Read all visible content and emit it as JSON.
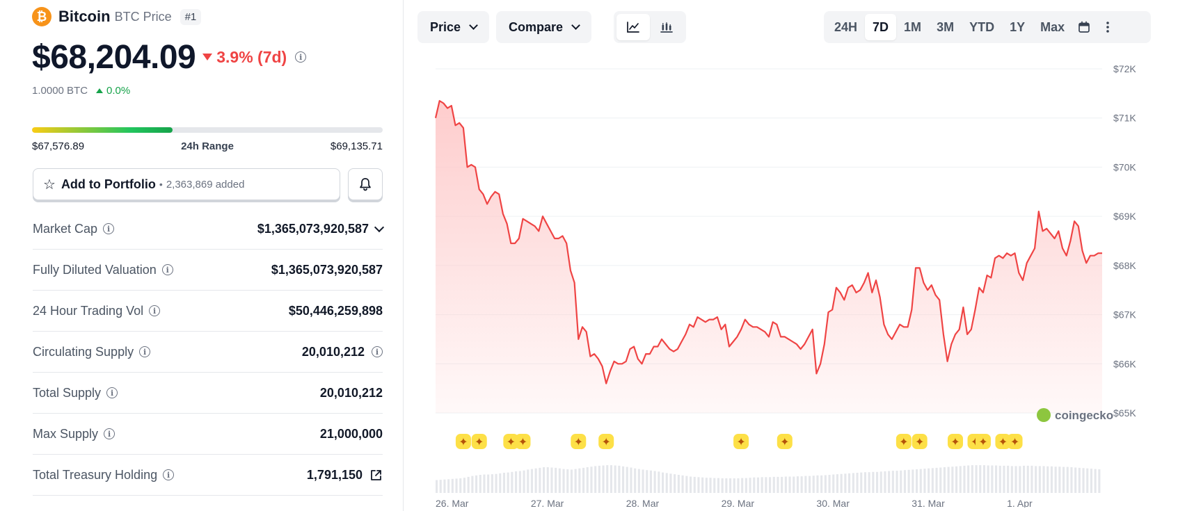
{
  "coin": {
    "logo_symbol": "₿",
    "name": "Bitcoin",
    "symbol_label": "BTC Price",
    "rank": "#1"
  },
  "price": {
    "value": "$68,204.09",
    "change": "3.9% (7d)",
    "change_direction": "down",
    "btc_value": "1.0000 BTC",
    "btc_change": "0.0%"
  },
  "range_24h": {
    "low": "$67,576.89",
    "label": "24h Range",
    "high": "$69,135.71",
    "fill_fraction": 0.4
  },
  "portfolio": {
    "label": "Add to Portfolio",
    "separator": "•",
    "count": "2,363,869 added"
  },
  "stats": [
    {
      "label": "Market Cap",
      "value": "$1,365,073,920,587",
      "trail": "chevron-down-icon"
    },
    {
      "label": "Fully Diluted Valuation",
      "value": "$1,365,073,920,587",
      "trail": ""
    },
    {
      "label": "24 Hour Trading Vol",
      "value": "$50,446,259,898",
      "trail": ""
    },
    {
      "label": "Circulating Supply",
      "value": "20,010,212",
      "trail": "info-icon"
    },
    {
      "label": "Total Supply",
      "value": "20,010,212",
      "trail": ""
    },
    {
      "label": "Max Supply",
      "value": "21,000,000",
      "trail": ""
    },
    {
      "label": "Total Treasury Holding",
      "value": "1,791,150",
      "trail": "external-link-icon"
    }
  ],
  "toolbar": {
    "price_label": "Price",
    "compare_label": "Compare",
    "ranges": [
      "24H",
      "7D",
      "1M",
      "3M",
      "YTD",
      "1Y",
      "Max"
    ],
    "active_range": "7D"
  },
  "colors": {
    "line": "#ef4444",
    "fill": "#fecaca",
    "accent_green": "#16a34a",
    "accent_red": "#ef4444",
    "brand_orange": "#f7931a"
  },
  "chart_data": {
    "type": "area",
    "y_tick_labels": [
      "$72K",
      "$71K",
      "$70K",
      "$69K",
      "$68K",
      "$67K",
      "$66K",
      "$65K"
    ],
    "y_ticks": [
      72000,
      71000,
      70000,
      69000,
      68000,
      67000,
      66000,
      65000
    ],
    "ylim": [
      65000,
      72000
    ],
    "x_tick_labels": [
      "26. Mar",
      "27. Mar",
      "28. Mar",
      "29. Mar",
      "30. Mar",
      "31. Mar",
      "1. Apr"
    ],
    "x_ticks": [
      0,
      24,
      48,
      72,
      96,
      120,
      144
    ],
    "xlim": [
      0,
      168
    ],
    "grid": true,
    "watermark": "coingecko",
    "series": [
      {
        "values": [
          [
            0,
            71000
          ],
          [
            1,
            71350
          ],
          [
            2,
            71300
          ],
          [
            3,
            71200
          ],
          [
            4,
            71250
          ],
          [
            5,
            70850
          ],
          [
            6,
            70900
          ],
          [
            7,
            70800
          ],
          [
            8,
            70000
          ],
          [
            9,
            70050
          ],
          [
            10,
            70000
          ],
          [
            11,
            69550
          ],
          [
            12,
            69450
          ],
          [
            13,
            69250
          ],
          [
            14,
            69400
          ],
          [
            15,
            69500
          ],
          [
            16,
            69450
          ],
          [
            17,
            69050
          ],
          [
            18,
            68850
          ],
          [
            19,
            68450
          ],
          [
            20,
            68450
          ],
          [
            21,
            68550
          ],
          [
            22,
            68950
          ],
          [
            23,
            68900
          ],
          [
            24,
            68850
          ],
          [
            25,
            68800
          ],
          [
            26,
            68700
          ],
          [
            27,
            69000
          ],
          [
            28,
            68850
          ],
          [
            29,
            68700
          ],
          [
            30,
            68550
          ],
          [
            31,
            68550
          ],
          [
            32,
            68600
          ],
          [
            33,
            68450
          ],
          [
            34,
            67900
          ],
          [
            35,
            67650
          ],
          [
            36,
            66500
          ],
          [
            37,
            66750
          ],
          [
            38,
            66650
          ],
          [
            39,
            66150
          ],
          [
            40,
            66200
          ],
          [
            41,
            66100
          ],
          [
            42,
            65950
          ],
          [
            43,
            65600
          ],
          [
            44,
            65850
          ],
          [
            45,
            66050
          ],
          [
            46,
            66000
          ],
          [
            47,
            66000
          ],
          [
            48,
            66050
          ],
          [
            49,
            66300
          ],
          [
            50,
            66350
          ],
          [
            51,
            66100
          ],
          [
            52,
            66000
          ],
          [
            53,
            66200
          ],
          [
            54,
            66200
          ],
          [
            55,
            66350
          ],
          [
            56,
            66350
          ],
          [
            57,
            66500
          ],
          [
            58,
            66400
          ],
          [
            59,
            66300
          ],
          [
            60,
            66250
          ],
          [
            61,
            66300
          ],
          [
            62,
            66450
          ],
          [
            63,
            66600
          ],
          [
            64,
            66800
          ],
          [
            65,
            66750
          ],
          [
            66,
            66950
          ],
          [
            67,
            66900
          ],
          [
            68,
            66850
          ],
          [
            69,
            66900
          ],
          [
            70,
            66900
          ],
          [
            71,
            66950
          ],
          [
            72,
            66700
          ],
          [
            73,
            66800
          ],
          [
            74,
            66350
          ],
          [
            75,
            66450
          ],
          [
            76,
            66550
          ],
          [
            77,
            66700
          ],
          [
            78,
            66900
          ],
          [
            79,
            66800
          ],
          [
            80,
            66750
          ],
          [
            81,
            66750
          ],
          [
            82,
            66700
          ],
          [
            83,
            66650
          ],
          [
            84,
            66550
          ],
          [
            85,
            66850
          ],
          [
            86,
            66800
          ],
          [
            87,
            66550
          ],
          [
            88,
            66550
          ],
          [
            89,
            66500
          ],
          [
            90,
            66450
          ],
          [
            91,
            66400
          ],
          [
            92,
            66300
          ],
          [
            93,
            66400
          ],
          [
            94,
            66550
          ],
          [
            95,
            66700
          ],
          [
            96,
            65800
          ],
          [
            97,
            66000
          ],
          [
            98,
            66400
          ],
          [
            99,
            67050
          ],
          [
            100,
            67100
          ],
          [
            101,
            67550
          ],
          [
            102,
            67450
          ],
          [
            103,
            67300
          ],
          [
            104,
            67550
          ],
          [
            105,
            67600
          ],
          [
            106,
            67450
          ],
          [
            107,
            67500
          ],
          [
            108,
            67650
          ],
          [
            109,
            67850
          ],
          [
            110,
            67450
          ],
          [
            111,
            67700
          ],
          [
            112,
            67350
          ],
          [
            113,
            66800
          ],
          [
            114,
            66600
          ],
          [
            115,
            66500
          ],
          [
            116,
            66650
          ],
          [
            117,
            66800
          ],
          [
            118,
            66750
          ],
          [
            119,
            66750
          ],
          [
            120,
            67100
          ],
          [
            121,
            67950
          ],
          [
            122,
            67950
          ],
          [
            123,
            67650
          ],
          [
            124,
            67500
          ],
          [
            125,
            67600
          ],
          [
            126,
            67400
          ],
          [
            127,
            67300
          ],
          [
            128,
            66600
          ],
          [
            129,
            66050
          ],
          [
            130,
            66400
          ],
          [
            131,
            66600
          ],
          [
            132,
            66700
          ],
          [
            133,
            67150
          ],
          [
            134,
            66600
          ],
          [
            135,
            66700
          ],
          [
            136,
            67100
          ],
          [
            137,
            67550
          ],
          [
            138,
            67450
          ],
          [
            139,
            67800
          ],
          [
            140,
            67750
          ],
          [
            141,
            68150
          ],
          [
            142,
            68200
          ],
          [
            143,
            68150
          ],
          [
            144,
            68250
          ],
          [
            145,
            68200
          ],
          [
            146,
            68250
          ],
          [
            147,
            67850
          ],
          [
            148,
            67700
          ],
          [
            149,
            68050
          ],
          [
            150,
            68200
          ],
          [
            151,
            68350
          ],
          [
            152,
            69100
          ],
          [
            153,
            68700
          ],
          [
            154,
            68750
          ],
          [
            155,
            68650
          ],
          [
            156,
            68550
          ],
          [
            157,
            68700
          ],
          [
            158,
            68350
          ],
          [
            159,
            68200
          ],
          [
            160,
            68500
          ],
          [
            161,
            68900
          ],
          [
            162,
            68800
          ],
          [
            163,
            68300
          ],
          [
            164,
            68050
          ],
          [
            165,
            68200
          ],
          [
            166,
            68200
          ],
          [
            167,
            68250
          ],
          [
            168,
            68250
          ]
        ]
      }
    ],
    "volume": [
      0.44,
      0.45,
      0.46,
      0.47,
      0.48,
      0.49,
      0.5,
      0.52,
      0.55,
      0.58,
      0.6,
      0.62,
      0.63,
      0.63,
      0.64,
      0.65,
      0.67,
      0.69,
      0.7,
      0.72,
      0.74,
      0.75,
      0.77,
      0.8,
      0.82,
      0.84,
      0.86,
      0.88,
      0.88,
      0.87,
      0.86,
      0.84,
      0.82,
      0.81,
      0.8,
      0.82,
      0.84,
      0.86,
      0.88,
      0.9,
      0.92,
      0.93,
      0.94,
      0.95,
      0.95,
      0.94,
      0.93,
      0.91,
      0.89,
      0.87,
      0.84,
      0.82,
      0.8,
      0.78,
      0.77,
      0.75,
      0.73,
      0.7,
      0.68,
      0.66,
      0.64,
      0.62,
      0.6,
      0.58,
      0.56,
      0.55,
      0.54,
      0.53,
      0.52,
      0.52,
      0.51,
      0.51,
      0.5,
      0.5,
      0.5,
      0.5,
      0.5,
      0.51,
      0.51,
      0.52,
      0.53,
      0.53,
      0.54,
      0.54,
      0.54,
      0.55,
      0.55,
      0.55,
      0.56,
      0.56,
      0.56,
      0.57,
      0.57,
      0.58,
      0.58,
      0.59,
      0.6,
      0.6,
      0.61,
      0.62,
      0.63,
      0.64,
      0.65,
      0.66,
      0.67,
      0.68,
      0.69,
      0.7,
      0.71,
      0.71,
      0.72,
      0.72,
      0.73,
      0.74,
      0.75,
      0.76,
      0.76,
      0.77,
      0.78,
      0.79,
      0.8,
      0.81,
      0.82,
      0.83,
      0.84,
      0.85,
      0.86,
      0.87,
      0.88,
      0.89,
      0.9,
      0.91,
      0.92,
      0.93,
      0.94,
      0.95,
      0.95,
      0.95,
      0.95,
      0.94,
      0.94,
      0.94,
      0.93,
      0.93,
      0.93,
      0.92,
      0.92,
      0.92,
      0.93,
      0.93,
      0.93,
      0.92,
      0.92,
      0.92,
      0.91,
      0.91,
      0.9,
      0.9,
      0.89,
      0.89,
      0.88,
      0.87,
      0.86,
      0.85,
      0.84,
      0.83,
      0.82,
      0.81
    ],
    "event_markers": [
      7,
      11,
      19,
      22,
      36,
      43,
      77,
      88,
      118,
      122,
      131,
      136,
      138,
      143,
      146
    ]
  }
}
